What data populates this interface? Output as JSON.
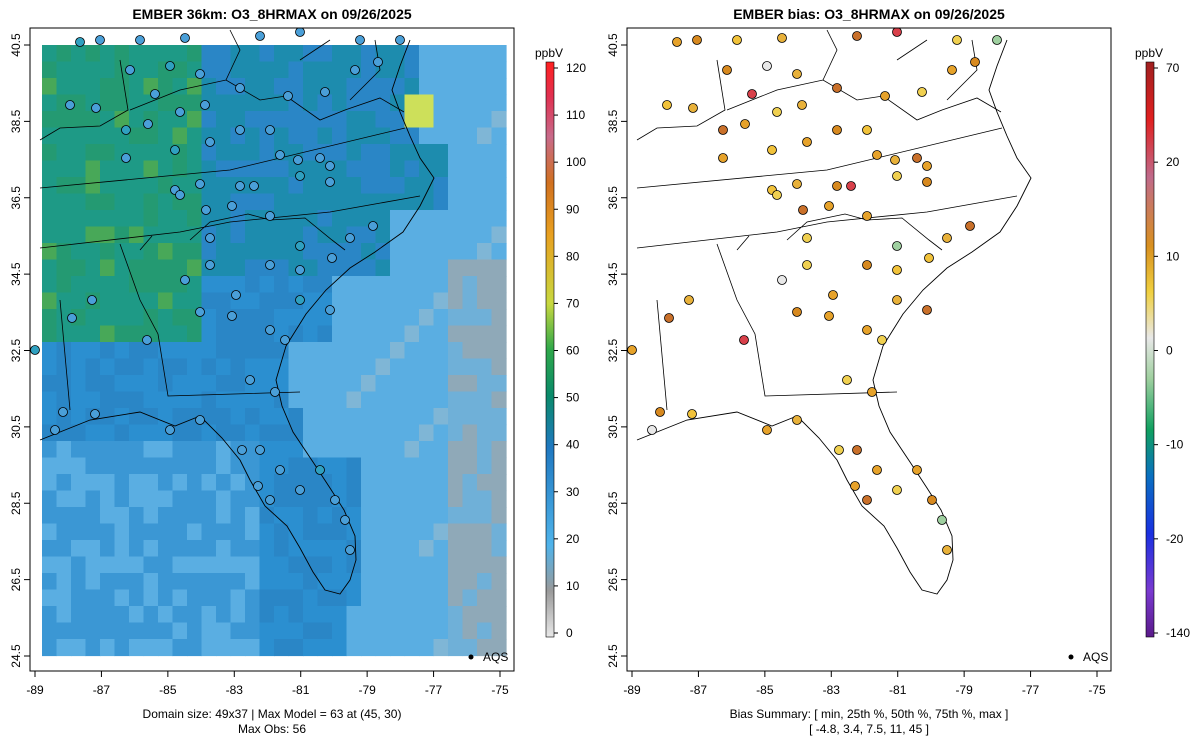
{
  "left_panel": {
    "title": "EMBER 36km: O3_8HRMAX on 09/26/2025",
    "x_ticks": [
      "-89",
      "-87",
      "-85",
      "-83",
      "-81",
      "-79",
      "-77",
      "-75"
    ],
    "y_ticks": [
      "40.5",
      "38.5",
      "36.5",
      "34.5",
      "32.5",
      "30.5",
      "28.5",
      "26.5",
      "24.5"
    ],
    "legend_label": "AQS",
    "caption_line1": "Domain size: 49x37 | Max Model = 63 at (45, 30)",
    "caption_line2": "Max Obs: 56",
    "colorbar": {
      "unit": "ppbV",
      "ticks": [
        "120",
        "110",
        "100",
        "90",
        "80",
        "70",
        "60",
        "50",
        "40",
        "30",
        "20",
        "10",
        "0"
      ],
      "range": [
        0,
        120
      ],
      "colors": [
        "#e8e8e8",
        "#9a9a9a",
        "#4fb3ea",
        "#1f78c0",
        "#0a8a6a",
        "#2fa84a",
        "#c8d840",
        "#e8a020",
        "#d07020",
        "#c86a8a",
        "#e03050",
        "#ff2020"
      ]
    }
  },
  "right_panel": {
    "title": "EMBER bias: O3_8HRMAX on 09/26/2025",
    "x_ticks": [
      "-89",
      "-87",
      "-85",
      "-83",
      "-81",
      "-79",
      "-77",
      "-75"
    ],
    "y_ticks": [
      "40.5",
      "38.5",
      "36.5",
      "34.5",
      "32.5",
      "30.5",
      "28.5",
      "26.5",
      "24.5"
    ],
    "legend_label": "AQS",
    "caption_line1": "Bias Summary: [ min, 25th %, 50th %, 75th %, max ]",
    "caption_line2": "[ -4.8,   3.4,   7.5,   11,   45 ]",
    "colorbar": {
      "unit": "ppbV",
      "ticks": [
        "70",
        "20",
        "10",
        "0",
        "-10",
        "-20",
        "-140"
      ],
      "colors": [
        "#5a1a8a",
        "#7a3ad0",
        "#1a30e0",
        "#0a70c0",
        "#10a060",
        "#a0d0a0",
        "#e8e8e8",
        "#f0d040",
        "#d89020",
        "#c06a8a",
        "#e02020",
        "#a02020"
      ]
    }
  },
  "colors": {
    "sea_model": "#5aaee2",
    "land_low": "#2a86c6",
    "land_high": "#1e9a86",
    "hot": "#cde05a",
    "marker_model": "#4a9fd8",
    "marker_bias": "#e6a22a"
  }
}
